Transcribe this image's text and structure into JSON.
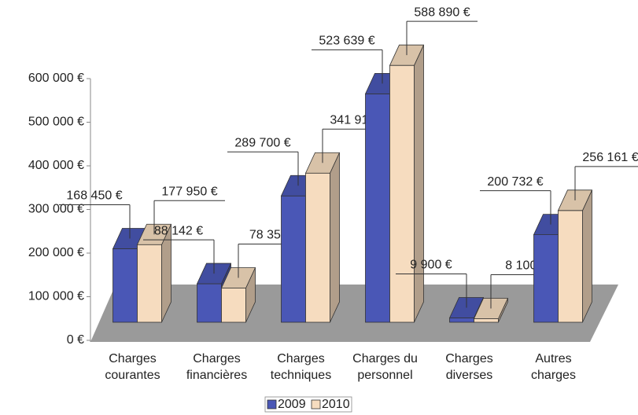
{
  "chart_data": {
    "type": "bar3d",
    "categories": [
      "Charges courantes",
      "Charges financières",
      "Charges techniques",
      "Charges du personnel",
      "Charges diverses",
      "Autres charges"
    ],
    "series": [
      {
        "name": "2009",
        "color": "#4a57b6",
        "values": [
          168450,
          88142,
          289700,
          523639,
          9900,
          200732
        ],
        "value_labels": [
          "168 450 €",
          "88 142 €",
          "289 700 €",
          "523 639 €",
          "9 900 €",
          "200 732 €"
        ]
      },
      {
        "name": "2010",
        "color": "#f6dcbf",
        "values": [
          177950,
          78350,
          341915,
          588890,
          8100,
          256161
        ],
        "value_labels": [
          "177 950 €",
          "78 350 €",
          "341 915 €",
          "588 890 €",
          "8 100 €",
          "256 161 €"
        ]
      }
    ],
    "ylim": [
      0,
      600000
    ],
    "yticks": [
      {
        "value": 0,
        "label": "0 €"
      },
      {
        "value": 100000,
        "label": "100 000 €"
      },
      {
        "value": 200000,
        "label": "200 000 €"
      },
      {
        "value": 300000,
        "label": "300 000 €"
      },
      {
        "value": 400000,
        "label": "400 000 €"
      },
      {
        "value": 500000,
        "label": "500 000 €"
      },
      {
        "value": 600000,
        "label": "600 000 €"
      }
    ],
    "legend": "bottom"
  }
}
